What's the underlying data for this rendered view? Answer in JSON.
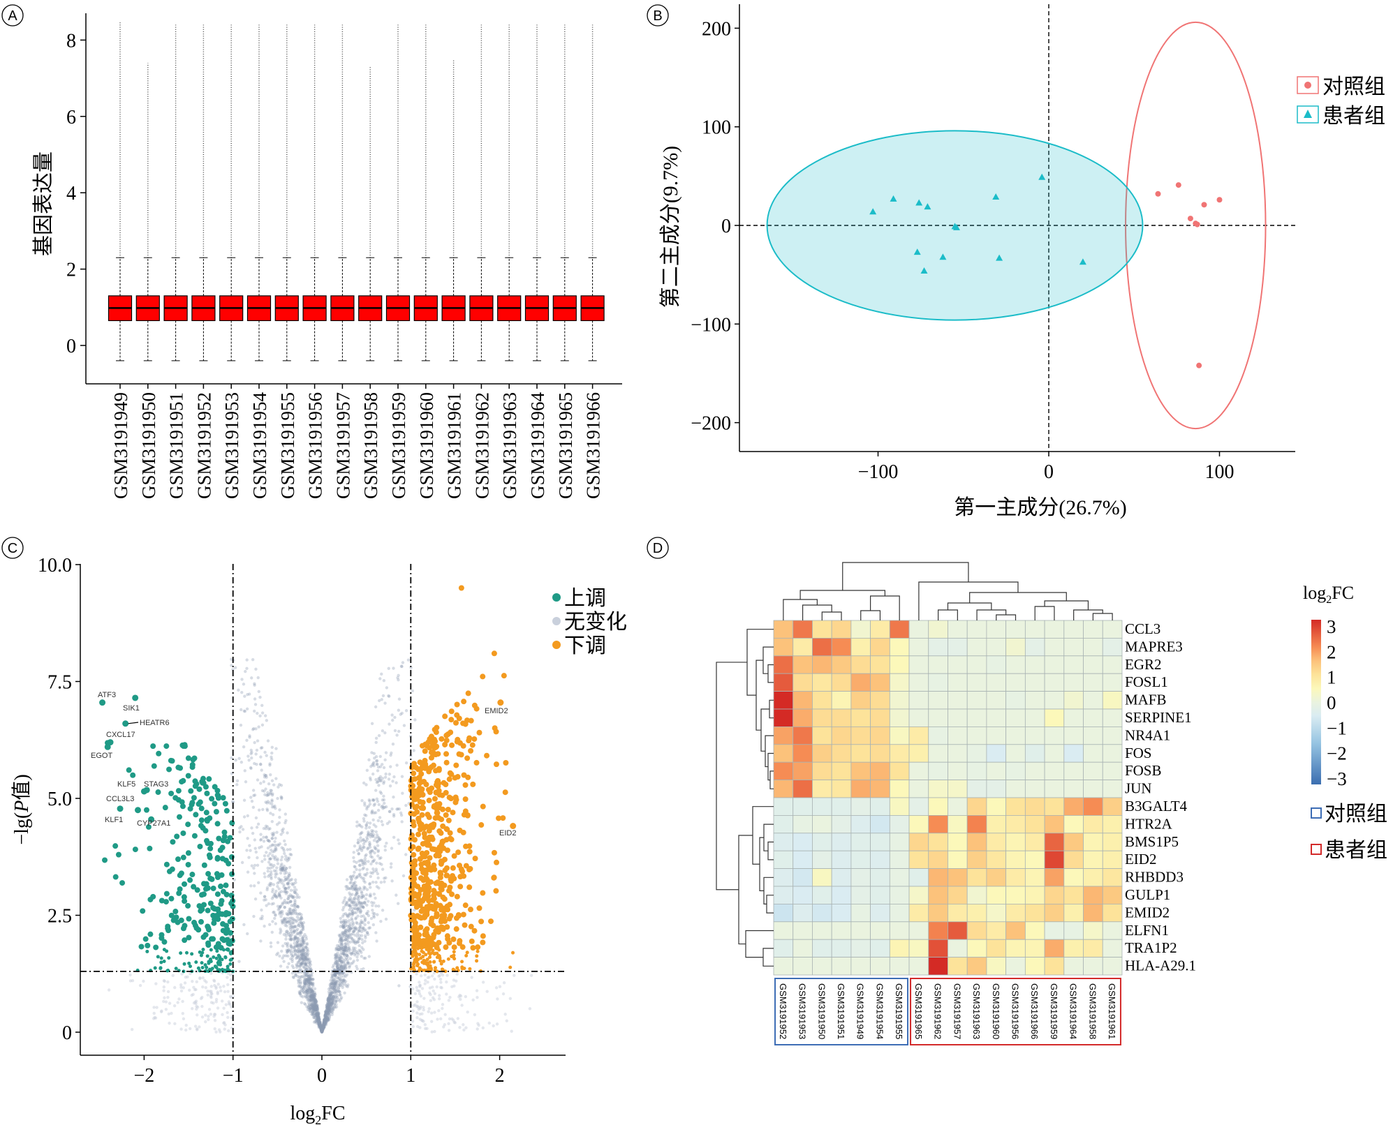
{
  "panel_letters": [
    "A",
    "B",
    "C",
    "D"
  ],
  "chart_data": [
    {
      "type": "box",
      "panel": "A",
      "ylabel": "基因表达量",
      "ylim": [
        -1,
        8.8
      ],
      "yticks": [
        "0",
        "2",
        "4",
        "6",
        "8"
      ],
      "categories": [
        "GSM3191949",
        "GSM3191950",
        "GSM3191951",
        "GSM3191952",
        "GSM3191953",
        "GSM3191954",
        "GSM3191955",
        "GSM3191956",
        "GSM3191957",
        "GSM3191958",
        "GSM3191959",
        "GSM3191960",
        "GSM3191961",
        "GSM3191962",
        "GSM3191963",
        "GSM3191964",
        "GSM3191965",
        "GSM3191966"
      ],
      "box": {
        "whisker_low": -0.4,
        "q1": 0.65,
        "median": 0.98,
        "q3": 1.3,
        "whisker_high": 2.3
      },
      "outlier_max": [
        8.5,
        7.4,
        8.4,
        8.4,
        8.4,
        8.4,
        8.4,
        8.4,
        8.4,
        7.3,
        8.4,
        8.4,
        7.5,
        8.4,
        8.4,
        8.4,
        8.4,
        8.4
      ],
      "box_color": "#ff0000"
    },
    {
      "type": "scatter",
      "panel": "B",
      "xlabel": "第一主成分(26.7%)",
      "ylabel": "第二主成分(9.7%)",
      "xlim": [
        -180,
        145
      ],
      "ylim": [
        -230,
        225
      ],
      "xticks": [
        "−100",
        "0",
        "100"
      ],
      "yticks": [
        "−200",
        "−100",
        "0",
        "100",
        "200"
      ],
      "legend_position": "right",
      "series": [
        {
          "name": "对照组",
          "marker": "circle",
          "color": "#f07474",
          "points": [
            [
              64,
              32
            ],
            [
              76,
              41
            ],
            [
              91,
              21
            ],
            [
              100,
              26
            ],
            [
              83,
              7
            ],
            [
              86,
              2
            ],
            [
              87,
              1
            ],
            [
              88,
              -142
            ]
          ],
          "ellipse": {
            "cx": 86,
            "cy": 0,
            "rx": 41,
            "ry": 206
          }
        },
        {
          "name": "患者组",
          "marker": "triangle",
          "color": "#1bbcc8",
          "points": [
            [
              -103,
              14
            ],
            [
              -91,
              27
            ],
            [
              -76,
              23
            ],
            [
              -71,
              19
            ],
            [
              -55,
              -1
            ],
            [
              -54,
              -2
            ],
            [
              -31,
              29
            ],
            [
              -4,
              49
            ],
            [
              -77,
              -27
            ],
            [
              -62,
              -32
            ],
            [
              -73,
              -46
            ],
            [
              -29,
              -33
            ],
            [
              20,
              -37
            ]
          ],
          "ellipse": {
            "cx": -55,
            "cy": 0,
            "rx": 110,
            "ry": 96
          }
        }
      ]
    },
    {
      "type": "scatter",
      "panel": "C",
      "xlabel": "log2FC",
      "xlabel_parts": [
        "log",
        "2",
        "FC"
      ],
      "ylabel_parts": [
        "−lg(",
        "P",
        "值)"
      ],
      "xlim": [
        -2.75,
        2.75
      ],
      "ylim": [
        -0.5,
        10.2
      ],
      "xticks": [
        "−2",
        "−1",
        "0",
        "1",
        "2"
      ],
      "yticks": [
        "0",
        "2.5",
        "5.0",
        "7.5",
        "10.0"
      ],
      "thresholds": {
        "log2fc": [
          -1,
          1
        ],
        "neg_log_p": 1.3
      },
      "legend_position": "top-right",
      "legend": [
        {
          "name": "上调",
          "color": "#1f9a86"
        },
        {
          "name": "无变化",
          "color": "#c9d0dc"
        },
        {
          "name": "下调",
          "color": "#f39a1f"
        }
      ],
      "labeled_points": [
        {
          "gene": "ATF3",
          "x": -2.47,
          "y": 7.05
        },
        {
          "gene": "SIK1",
          "x": -2.1,
          "y": 7.15
        },
        {
          "gene": "HEATR6",
          "x": -2.21,
          "y": 6.6
        },
        {
          "gene": "CXCL17",
          "x": -2.38,
          "y": 6.2
        },
        {
          "gene": "EGOT",
          "x": -2.41,
          "y": 6.1
        },
        {
          "gene": "KLF5",
          "x": -2.0,
          "y": 5.15
        },
        {
          "gene": "STAG3",
          "x": -1.97,
          "y": 5.18
        },
        {
          "gene": "CCL3L3",
          "x": -2.27,
          "y": 4.78
        },
        {
          "gene": "KLF1",
          "x": -2.07,
          "y": 4.75
        },
        {
          "gene": "CYP27A1",
          "x": -1.92,
          "y": 4.55
        },
        {
          "gene": "EMID2",
          "x": 2.01,
          "y": 7.05
        },
        {
          "gene": "EID2",
          "x": 2.15,
          "y": 4.41
        }
      ]
    },
    {
      "type": "heatmap",
      "panel": "D",
      "legend_title_parts": [
        "log",
        "2",
        "FC"
      ],
      "colorbar_ticks": [
        "3",
        "2",
        "1",
        "0",
        "−1",
        "−2",
        "−3"
      ],
      "zlim": [
        -3,
        3
      ],
      "rows": [
        "CCL3",
        "MAPRE3",
        "EGR2",
        "FOSL1",
        "MAFB",
        "SERPINE1",
        "NR4A1",
        "FOS",
        "FOSB",
        "JUN",
        "B3GALT4",
        "HTR2A",
        "BMS1P5",
        "EID2",
        "RHBDD3",
        "GULP1",
        "EMID2",
        "ELFN1",
        "TRA1P2",
        "HLA-A29.1"
      ],
      "columns": [
        "GSM3191952",
        "GSM3191953",
        "GSM3191950",
        "GSM3191951",
        "GSM3191949",
        "GSM3191954",
        "GSM3191955",
        "GSM3191965",
        "GSM3191962",
        "GSM3191957",
        "GSM3191963",
        "GSM3191960",
        "GSM3191956",
        "GSM3191966",
        "GSM3191959",
        "GSM3191964",
        "GSM3191958",
        "GSM3191961"
      ],
      "groups": [
        {
          "name": "对照组",
          "color": "#3d6db5",
          "columns": 7
        },
        {
          "name": "患者组",
          "color": "#d32a2a",
          "columns": 11
        }
      ],
      "values": [
        [
          1.5,
          2.2,
          1,
          1.2,
          0.2,
          0.8,
          2.2,
          0,
          0.2,
          0,
          0,
          0,
          0,
          0,
          0,
          0,
          0,
          0
        ],
        [
          1.5,
          0.8,
          2.3,
          2,
          0.7,
          1.2,
          0.5,
          0,
          -0.2,
          -0.2,
          0,
          0,
          0.2,
          -0.2,
          0,
          0,
          0,
          -0.2
        ],
        [
          2.3,
          1.5,
          1.6,
          1.4,
          1.1,
          1,
          0.5,
          0,
          0,
          0,
          0,
          -0.1,
          0,
          0,
          0,
          0,
          0,
          0
        ],
        [
          2.5,
          1.1,
          0.9,
          1.1,
          1.7,
          1.5,
          0.3,
          0,
          -0.1,
          0,
          0,
          0,
          0,
          0,
          0,
          0,
          0,
          0
        ],
        [
          3,
          1.6,
          1,
          0.6,
          1.3,
          1.1,
          0.2,
          0,
          0,
          0,
          0,
          0,
          -0.1,
          0,
          0,
          0.2,
          0,
          0.4
        ],
        [
          3,
          1.7,
          1.1,
          1.1,
          1,
          1.1,
          0.2,
          0,
          0,
          0,
          0,
          0,
          0,
          0,
          0.5,
          0,
          0,
          0
        ],
        [
          1.8,
          2.2,
          1,
          1.2,
          1.1,
          1.2,
          0.4,
          0.8,
          -0.1,
          0,
          0,
          0,
          0,
          0,
          0,
          0,
          0,
          0
        ],
        [
          1.5,
          2,
          1.3,
          1.1,
          1,
          1.1,
          0.8,
          0.7,
          0,
          0,
          -0.1,
          -0.5,
          0,
          -0.3,
          0,
          -0.5,
          0,
          0
        ],
        [
          2,
          1.8,
          1.1,
          1,
          1.5,
          1.6,
          1,
          0,
          -0.1,
          0,
          -0.1,
          0,
          -0.1,
          0,
          0,
          0,
          0,
          0
        ],
        [
          1.6,
          2.3,
          0.8,
          0.9,
          1.7,
          1.6,
          0.5,
          0,
          0.3,
          0.3,
          -0.2,
          -0.2,
          0,
          0,
          0,
          0,
          0,
          0
        ],
        [
          -0.3,
          -0.3,
          -0.3,
          -0.3,
          -0.2,
          -0.3,
          0.4,
          -0.2,
          0.5,
          0,
          1.2,
          0.5,
          1,
          1.1,
          1,
          1.7,
          2,
          1.3
        ],
        [
          -0.3,
          -0.1,
          0,
          -0.2,
          -0.4,
          -0.6,
          -0.2,
          0.5,
          2,
          0.4,
          2.1,
          0.7,
          0.8,
          1,
          1.5,
          0.5,
          0.8,
          0.7
        ],
        [
          -0.4,
          -0.5,
          -0.3,
          -0.4,
          -0.3,
          -0.3,
          -0.1,
          1.2,
          1,
          0.5,
          1.5,
          0.8,
          0.6,
          0.8,
          2.4,
          1.4,
          0.6,
          0.7
        ],
        [
          -0.3,
          -0.5,
          -0.2,
          -0.4,
          -0.3,
          -0.4,
          -0.1,
          1,
          1.2,
          0.5,
          1.3,
          0.9,
          0.6,
          0.5,
          2.7,
          1.1,
          0.6,
          0.7
        ],
        [
          -0.4,
          -0.6,
          0.4,
          -0.4,
          -0.2,
          -0.3,
          -0.1,
          -0.3,
          1.6,
          1.5,
          1,
          1.3,
          0.8,
          0.6,
          1.8,
          0.5,
          0.7,
          0.9
        ],
        [
          -0.4,
          -0.5,
          -0.3,
          -0.5,
          -0.2,
          -0.3,
          -0.1,
          0.3,
          1.5,
          1.2,
          0.2,
          0.5,
          0.5,
          0.6,
          1.2,
          1,
          1.6,
          1.4
        ],
        [
          -0.7,
          -0.4,
          -0.6,
          -0.5,
          -0.1,
          -0.4,
          -0.1,
          0.8,
          1.4,
          0.8,
          0.7,
          0.3,
          0.8,
          1,
          1.3,
          0.7,
          1.6,
          1
        ],
        [
          0,
          0,
          0,
          0,
          0,
          0,
          0,
          0,
          2.1,
          2.5,
          1.1,
          0.8,
          1.5,
          0.5,
          -0.1,
          -0.1,
          0.3,
          0
        ],
        [
          -0.3,
          0,
          -0.3,
          -0.3,
          -0.2,
          -0.3,
          0.6,
          0.4,
          2.6,
          0,
          0.5,
          1,
          0.6,
          0.6,
          1.7,
          0.7,
          0.8,
          0
        ],
        [
          0,
          0,
          0,
          0,
          0,
          0,
          0,
          0,
          3,
          1,
          1.4,
          0.4,
          0,
          0.5,
          1,
          0,
          0,
          0
        ]
      ]
    }
  ]
}
